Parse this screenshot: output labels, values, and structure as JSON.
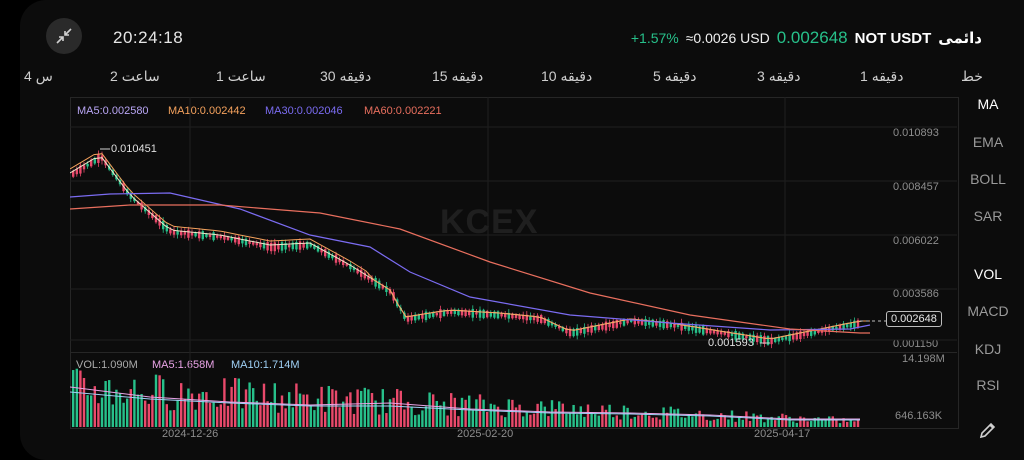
{
  "header": {
    "time": "20:24:18",
    "change": "+1.57%",
    "usd_approx": "≈0.0026 USD",
    "price": "0.002648",
    "pair": "NOT USDT",
    "contract_type": "دائمی"
  },
  "timeframes": [
    {
      "label": "4 س"
    },
    {
      "label": "2 ساعت"
    },
    {
      "label": "1 ساعت"
    },
    {
      "label": "30 دقیقه"
    },
    {
      "label": "15 دقیقه"
    },
    {
      "label": "10 دقیقه"
    },
    {
      "label": "5 دقیقه"
    },
    {
      "label": "3 دقیقه"
    },
    {
      "label": "1 دقیقه"
    },
    {
      "label": "خط"
    }
  ],
  "indicators": {
    "ma5": "MA5:0.002580",
    "ma10": "MA10:0.002442",
    "ma30": "MA30:0.002046",
    "ma60": "MA60:0.002221"
  },
  "volume_legend": {
    "vol": "VOL:1.090M",
    "ma5": "MA5:1.658M",
    "ma10": "MA10:1.714M"
  },
  "y_axis": [
    "0.010893",
    "0.008457",
    "0.006022",
    "0.003586",
    "0.001150"
  ],
  "volume_axis": [
    "14.198M",
    "646.163K"
  ],
  "x_axis": [
    "2024-12-26",
    "2025-02-20",
    "2025-04-17"
  ],
  "annotations": {
    "high": "0.010451",
    "low": "0.001593",
    "last_price": "0.002648"
  },
  "watermark": "KCEX",
  "side_menu": [
    "MA",
    "EMA",
    "BOLL",
    "SAR",
    "VOL",
    "MACD",
    "KDJ",
    "RSI"
  ],
  "colors": {
    "up": "#27c08a",
    "down": "#e9496b",
    "ma5": "#f0e6c8",
    "ma10": "#f5a25d",
    "ma30": "#7b6cf2",
    "ma60": "#e96f5e"
  }
}
